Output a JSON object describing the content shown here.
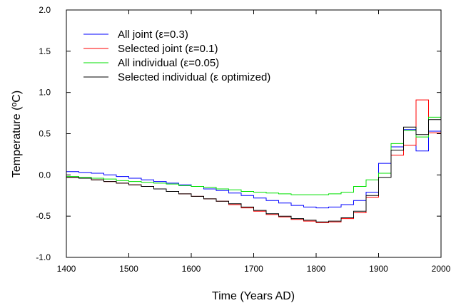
{
  "chart_data": {
    "type": "line",
    "step": true,
    "xlabel": "Time (Years AD)",
    "ylabel": "Temperature (ºC)",
    "xlim": [
      1400,
      2000
    ],
    "ylim": [
      -1.0,
      2.0
    ],
    "xticks": [
      1400,
      1500,
      1600,
      1700,
      1800,
      1900,
      2000
    ],
    "yticks": [
      2.0,
      1.5,
      1.0,
      0.5,
      0.0,
      -0.5,
      -1.0
    ],
    "ytick_labels": [
      "2.0",
      "1.5",
      "1.0",
      "0.5",
      "0.0",
      "-0.5",
      "-1.0"
    ],
    "grid": false,
    "legend_position": "top-left",
    "bin_edges": [
      1400,
      1420,
      1440,
      1460,
      1480,
      1500,
      1520,
      1540,
      1560,
      1580,
      1600,
      1620,
      1640,
      1660,
      1680,
      1700,
      1720,
      1740,
      1760,
      1780,
      1800,
      1820,
      1840,
      1860,
      1880,
      1900,
      1920,
      1940,
      1960,
      1980,
      2000
    ],
    "series": [
      {
        "name": "All joint (ε=0.3)",
        "color": "#0000ff",
        "values": [
          0.04,
          0.03,
          0.02,
          0.0,
          -0.02,
          -0.04,
          -0.06,
          -0.08,
          -0.1,
          -0.12,
          -0.14,
          -0.17,
          -0.19,
          -0.22,
          -0.25,
          -0.28,
          -0.31,
          -0.34,
          -0.37,
          -0.39,
          -0.4,
          -0.39,
          -0.36,
          -0.31,
          -0.21,
          0.14,
          0.34,
          0.55,
          0.29,
          0.53
        ]
      },
      {
        "name": "Selected joint (ε=0.1)",
        "color": "#ff0000",
        "values": [
          -0.03,
          -0.04,
          -0.06,
          -0.08,
          -0.1,
          -0.12,
          -0.14,
          -0.17,
          -0.2,
          -0.23,
          -0.26,
          -0.29,
          -0.32,
          -0.36,
          -0.4,
          -0.44,
          -0.48,
          -0.51,
          -0.54,
          -0.56,
          -0.58,
          -0.57,
          -0.53,
          -0.46,
          -0.27,
          0.02,
          0.24,
          0.36,
          0.91,
          0.51
        ]
      },
      {
        "name": "All individual (ε=0.05)",
        "color": "#00e000",
        "values": [
          -0.02,
          -0.03,
          -0.04,
          -0.05,
          -0.07,
          -0.08,
          -0.09,
          -0.1,
          -0.11,
          -0.13,
          -0.14,
          -0.15,
          -0.17,
          -0.18,
          -0.2,
          -0.21,
          -0.22,
          -0.23,
          -0.24,
          -0.24,
          -0.24,
          -0.23,
          -0.21,
          -0.14,
          -0.06,
          0.02,
          0.38,
          0.54,
          0.46,
          0.7
        ]
      },
      {
        "name": "Selected individual (ε optimized)",
        "color": "#000000",
        "values": [
          -0.03,
          -0.04,
          -0.06,
          -0.08,
          -0.1,
          -0.12,
          -0.14,
          -0.17,
          -0.2,
          -0.23,
          -0.26,
          -0.29,
          -0.32,
          -0.35,
          -0.39,
          -0.43,
          -0.47,
          -0.5,
          -0.53,
          -0.55,
          -0.57,
          -0.56,
          -0.52,
          -0.44,
          -0.25,
          -0.03,
          0.3,
          0.58,
          0.49,
          0.67
        ]
      }
    ]
  }
}
